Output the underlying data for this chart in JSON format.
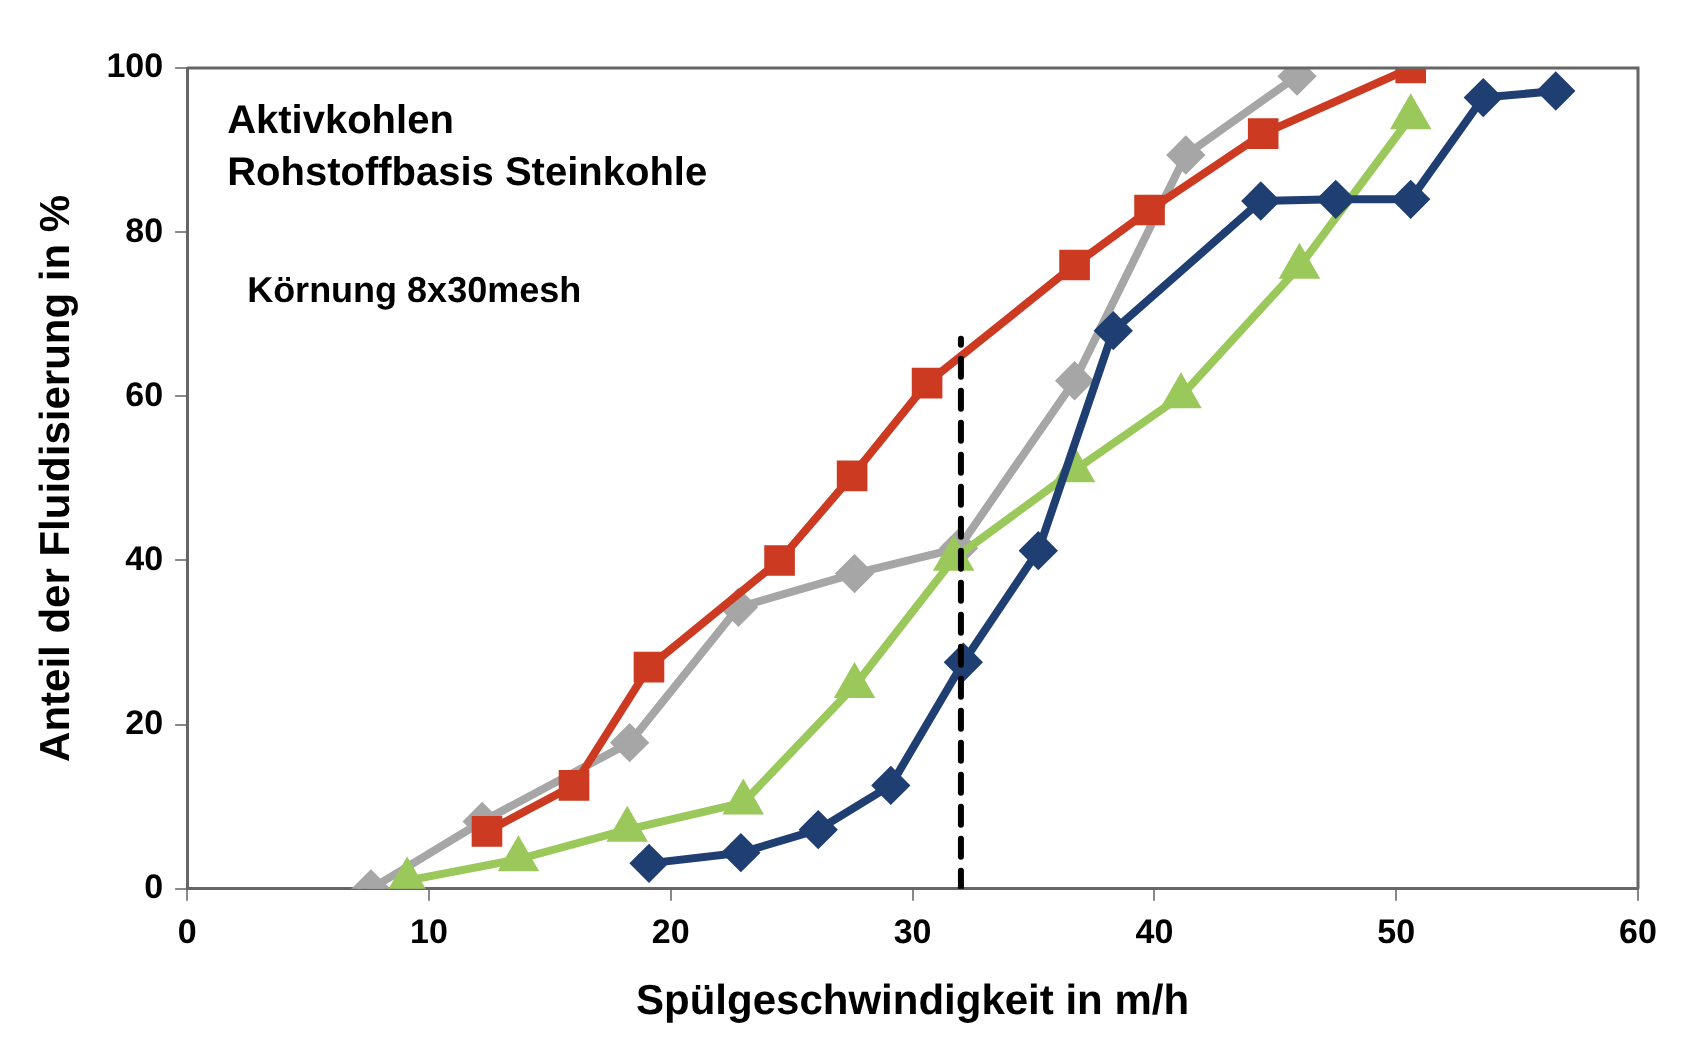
{
  "chart_data": {
    "type": "line",
    "xlabel": "Spülgeschwindigkeit in m/h",
    "ylabel": "Anteil der Fluidisierung in %",
    "annotations": [
      "Aktivkohlen",
      "Rohstoffbasis Steinkohle",
      "Körnung 8x30mesh"
    ],
    "xlim": [
      0,
      60
    ],
    "xticks": [
      0,
      10,
      20,
      30,
      40,
      50,
      60
    ],
    "ylim": [
      0,
      100
    ],
    "yticks": [
      0,
      20,
      40,
      60,
      80,
      100
    ],
    "grid": false,
    "legend": false,
    "series": [
      {
        "color": "#a6a6a6",
        "marker": "diamond",
        "x": [
          7.6,
          12.2,
          18.3,
          22.8,
          27.6,
          31.9,
          36.7,
          41.3,
          45.9
        ],
        "values": [
          0,
          8.2,
          17.8,
          34.3,
          38.4,
          41.5,
          61.9,
          89.4,
          99
        ]
      },
      {
        "color": "#9bc85a",
        "marker": "triangle",
        "x": [
          9.1,
          13.7,
          18.2,
          23,
          27.6,
          31.7,
          36.7,
          41.1,
          46,
          50.6
        ],
        "values": [
          1,
          3.6,
          7.2,
          10.5,
          24.7,
          40.2,
          51,
          60,
          75.8,
          94
        ]
      },
      {
        "color": "#1f3f73",
        "marker": "diamond",
        "x": [
          19.1,
          22.9,
          26.1,
          29.1,
          32.1,
          35.2,
          38.3,
          44.4,
          47.5,
          50.6,
          53.6,
          56.6
        ],
        "values": [
          3.1,
          4.4,
          7.2,
          12.6,
          27.6,
          41.2,
          68,
          83.8,
          84,
          84,
          96.4,
          97.2
        ]
      },
      {
        "color": "#cc3a22",
        "marker": "square",
        "x": [
          12.4,
          16,
          19.1,
          24.5,
          27.5,
          30.6,
          36.7,
          39.8,
          44.5,
          50.6
        ],
        "values": [
          7,
          12.6,
          27,
          40,
          50.3,
          61.6,
          76,
          82.7,
          92,
          100
        ]
      },
      {
        "color": "#000000",
        "marker": "none",
        "line_style": "dashed",
        "x": [
          32,
          32
        ],
        "values": [
          0,
          67
        ]
      }
    ]
  }
}
